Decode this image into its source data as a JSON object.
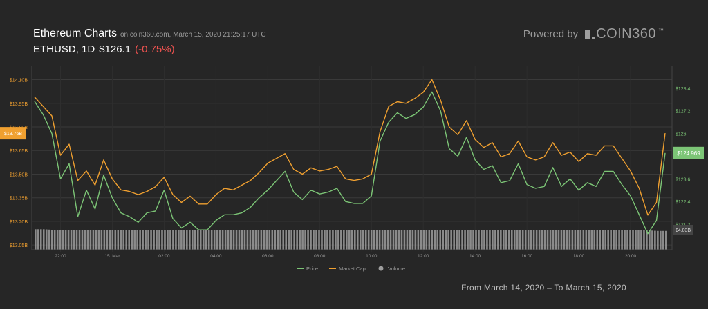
{
  "header": {
    "title": "Ethereum Charts",
    "source": "on coin360.com, March 15, 2020 21:25:17 UTC",
    "pair_interval": "ETHUSD, 1D",
    "price": "$126.1",
    "change": "(-0.75%)"
  },
  "branding": {
    "powered_by": "Powered by",
    "brand": "COIN360",
    "trademark": "™"
  },
  "footer": {
    "range": "From March 14, 2020 – To March 15, 2020"
  },
  "colors": {
    "background": "#262626",
    "price": "#7cc576",
    "market_cap": "#f0a030",
    "volume": "#9e9e9e",
    "change_negative": "#ef5350"
  },
  "chart_data": {
    "type": "line",
    "x": [
      "21:00",
      "21:20",
      "21:40",
      "22:00",
      "22:20",
      "22:40",
      "23:00",
      "23:20",
      "23:40",
      "00:00",
      "00:20",
      "00:40",
      "01:00",
      "01:20",
      "01:40",
      "02:00",
      "02:20",
      "02:40",
      "03:00",
      "03:20",
      "03:40",
      "04:00",
      "04:20",
      "04:40",
      "05:00",
      "05:20",
      "05:40",
      "06:00",
      "06:20",
      "06:40",
      "07:00",
      "07:20",
      "07:40",
      "08:00",
      "08:20",
      "08:40",
      "09:00",
      "09:20",
      "09:40",
      "10:00",
      "10:20",
      "10:40",
      "11:00",
      "11:20",
      "11:40",
      "12:00",
      "12:20",
      "12:40",
      "13:00",
      "13:20",
      "13:40",
      "14:00",
      "14:20",
      "14:40",
      "15:00",
      "15:20",
      "15:40",
      "16:00",
      "16:20",
      "16:40",
      "17:00",
      "17:20",
      "17:40",
      "18:00",
      "18:20",
      "18:40",
      "19:00",
      "19:20",
      "19:40",
      "20:00",
      "20:20",
      "20:40",
      "21:00",
      "21:20"
    ],
    "x_ticks": [
      "22:00",
      "15. Mar",
      "02:00",
      "04:00",
      "06:00",
      "08:00",
      "10:00",
      "12:00",
      "14:00",
      "16:00",
      "18:00",
      "20:00"
    ],
    "x_tick_index": [
      3,
      9,
      15,
      21,
      27,
      33,
      39,
      45,
      51,
      57,
      63,
      69
    ],
    "series": [
      {
        "name": "Price",
        "axis": "right",
        "values": [
          127.7,
          127.0,
          126.0,
          123.6,
          124.4,
          121.6,
          123.0,
          122.0,
          123.8,
          122.6,
          121.8,
          121.6,
          121.3,
          121.8,
          121.9,
          123.0,
          121.5,
          121.0,
          121.3,
          120.9,
          120.9,
          121.4,
          121.7,
          121.7,
          121.8,
          122.1,
          122.6,
          123.0,
          123.5,
          124.0,
          122.9,
          122.5,
          123.0,
          122.8,
          122.9,
          123.1,
          122.4,
          122.3,
          122.3,
          122.7,
          125.6,
          126.6,
          127.1,
          126.8,
          127.0,
          127.4,
          128.2,
          127.2,
          125.2,
          124.8,
          125.8,
          124.6,
          124.1,
          124.3,
          123.4,
          123.5,
          124.4,
          123.3,
          123.1,
          123.2,
          124.2,
          123.2,
          123.6,
          123.0,
          123.4,
          123.2,
          124.0,
          124.0,
          123.3,
          122.7,
          121.7,
          120.7,
          121.4,
          124.969
        ],
        "color": "#7cc576"
      },
      {
        "name": "Market Cap",
        "axis": "left",
        "values": [
          13.99,
          13.93,
          13.87,
          13.62,
          13.69,
          13.46,
          13.52,
          13.43,
          13.59,
          13.47,
          13.4,
          13.39,
          13.37,
          13.39,
          13.42,
          13.48,
          13.37,
          13.32,
          13.36,
          13.31,
          13.31,
          13.37,
          13.41,
          13.4,
          13.43,
          13.46,
          13.51,
          13.57,
          13.6,
          13.63,
          13.53,
          13.5,
          13.54,
          13.52,
          13.53,
          13.55,
          13.47,
          13.46,
          13.47,
          13.5,
          13.77,
          13.93,
          13.96,
          13.95,
          13.98,
          14.02,
          14.1,
          13.97,
          13.8,
          13.75,
          13.84,
          13.72,
          13.67,
          13.7,
          13.61,
          13.63,
          13.71,
          13.61,
          13.59,
          13.61,
          13.7,
          13.62,
          13.64,
          13.58,
          13.63,
          13.62,
          13.68,
          13.68,
          13.6,
          13.52,
          13.41,
          13.24,
          13.32,
          13.76
        ],
        "color": "#f0a030"
      },
      {
        "name": "Volume",
        "values": [
          4.06,
          4.06,
          4.05,
          4.05,
          4.05,
          4.05,
          4.05,
          4.05,
          4.04,
          4.04,
          4.04,
          4.04,
          4.04,
          4.04,
          4.04,
          4.04,
          4.04,
          4.04,
          4.04,
          4.04,
          4.04,
          4.04,
          4.04,
          4.04,
          4.04,
          4.04,
          4.04,
          4.04,
          4.04,
          4.04,
          4.04,
          4.04,
          4.04,
          4.04,
          4.04,
          4.04,
          4.04,
          4.04,
          4.04,
          4.04,
          4.04,
          4.04,
          4.04,
          4.04,
          4.04,
          4.04,
          4.04,
          4.04,
          4.04,
          4.04,
          4.04,
          4.04,
          4.04,
          4.04,
          4.04,
          4.04,
          4.04,
          4.04,
          4.04,
          4.04,
          4.04,
          4.04,
          4.04,
          4.04,
          4.04,
          4.04,
          4.04,
          4.04,
          4.04,
          4.04,
          4.04,
          4.04,
          4.03,
          4.03
        ],
        "color": "#9e9e9e"
      }
    ],
    "left_axis": {
      "ticks": [
        "$14.10B",
        "$13.95B",
        "$13.80B",
        "$13.65B",
        "$13.50B",
        "$13.35B",
        "$13.20B",
        "$13.05B"
      ],
      "tick_values": [
        14.1,
        13.95,
        13.8,
        13.65,
        13.5,
        13.35,
        13.2,
        13.05
      ],
      "range": [
        13.02,
        14.19
      ],
      "last_label": "$13.76B"
    },
    "right_axis": {
      "ticks": [
        "$128.4",
        "$127.2",
        "$126",
        "$124.8",
        "$123.6",
        "$122.4",
        "$121.2"
      ],
      "tick_values": [
        128.4,
        127.2,
        126.0,
        124.8,
        123.6,
        122.4,
        121.2
      ],
      "range": [
        119.85,
        129.6
      ],
      "last_label": "$124.969"
    },
    "volume_label": "$4.03B",
    "legend": [
      {
        "label": "Price",
        "kind": "line",
        "color": "#7cc576"
      },
      {
        "label": "Market Cap",
        "kind": "line",
        "color": "#f0a030"
      },
      {
        "label": "Volume",
        "kind": "dot",
        "color": "#9e9e9e"
      }
    ],
    "legend_position": "bottom-center",
    "grid": true
  }
}
